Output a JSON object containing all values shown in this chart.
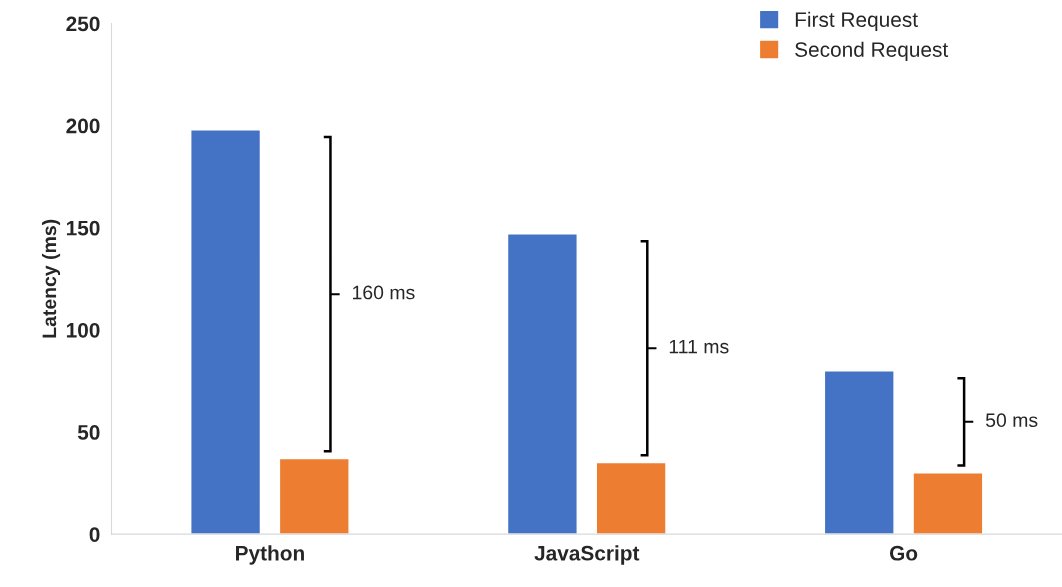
{
  "chart_data": {
    "type": "bar",
    "ylabel": "Latency (ms)",
    "categories": [
      "Python",
      "JavaScript",
      "Go"
    ],
    "series": [
      {
        "name": "First Request",
        "color": "#4472c4",
        "values": [
          198,
          147,
          80
        ]
      },
      {
        "name": "Second Request",
        "color": "#ed7d31",
        "values": [
          37,
          35,
          30
        ]
      }
    ],
    "ylim": [
      0,
      250
    ],
    "yticks": [
      0,
      50,
      100,
      150,
      200,
      250
    ],
    "grid": false,
    "legend": "top right",
    "annotations": [
      "160 ms",
      "111 ms",
      "50 ms"
    ]
  }
}
